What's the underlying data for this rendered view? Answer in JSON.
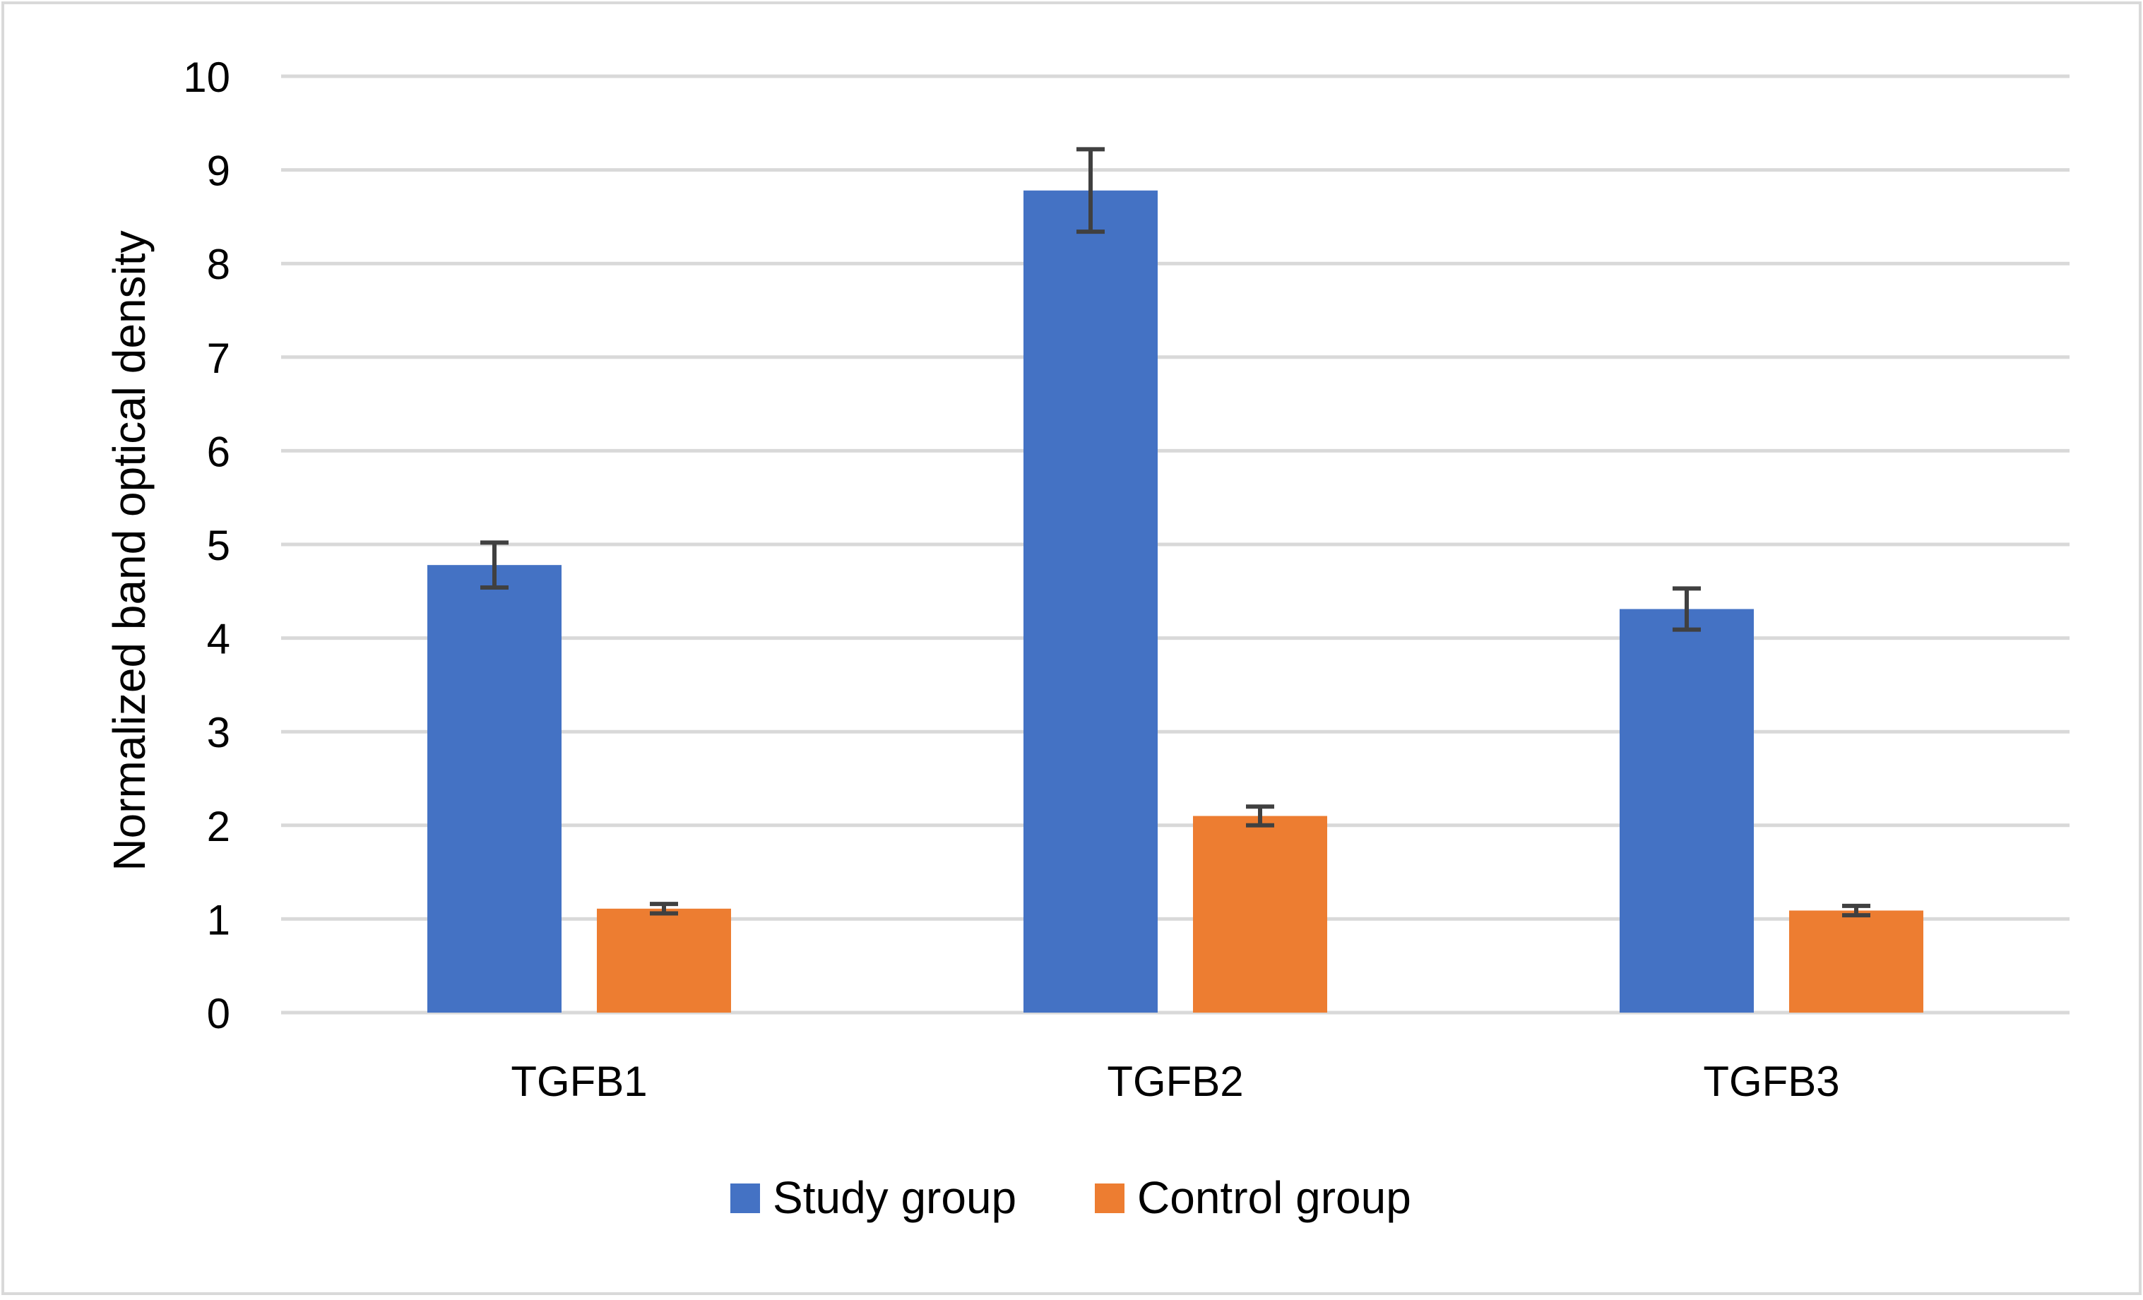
{
  "chart_data": {
    "type": "bar",
    "title": "",
    "xlabel": "",
    "ylabel": "Normalized band optical density",
    "ylim": [
      0,
      10
    ],
    "yticks": [
      0,
      1,
      2,
      3,
      4,
      5,
      6,
      7,
      8,
      9,
      10
    ],
    "grid": true,
    "legend_position": "bottom-center",
    "categories": [
      "TGFB1",
      "TGFB2",
      "TGFB3"
    ],
    "series": [
      {
        "name": "Study group",
        "color": "#4472C4",
        "values": [
          4.78,
          8.78,
          4.31
        ],
        "error": [
          0.24,
          0.44,
          0.22
        ]
      },
      {
        "name": "Control group",
        "color": "#ED7D31",
        "values": [
          1.11,
          2.1,
          1.09
        ],
        "error": [
          0.05,
          0.1,
          0.05
        ]
      }
    ]
  },
  "colors": {
    "gridline": "#D9D9D9",
    "error_bar": "#404040",
    "border": "#D9D9D9"
  }
}
